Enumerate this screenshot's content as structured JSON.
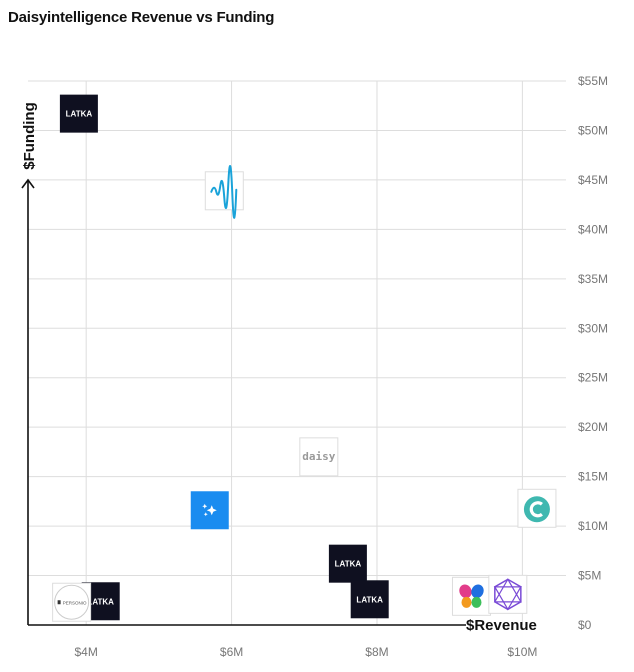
{
  "page": {
    "title": "Daisyintelligence Revenue vs Funding"
  },
  "chart_data": {
    "type": "scatter",
    "title": "Daisyintelligence Revenue vs Funding",
    "xlabel": "$Revenue",
    "ylabel": "$Funding",
    "xlim": [
      3.2,
      10.6
    ],
    "ylim": [
      0,
      55
    ],
    "x_ticks": [
      {
        "value": 4,
        "label": "$4M"
      },
      {
        "value": 6,
        "label": "$6M"
      },
      {
        "value": 8,
        "label": "$8M"
      },
      {
        "value": 10,
        "label": "$10M"
      }
    ],
    "y_ticks": [
      {
        "value": 0,
        "label": "$0"
      },
      {
        "value": 5,
        "label": "$5M"
      },
      {
        "value": 10,
        "label": "$10M"
      },
      {
        "value": 15,
        "label": "$15M"
      },
      {
        "value": 20,
        "label": "$20M"
      },
      {
        "value": 25,
        "label": "$25M"
      },
      {
        "value": 30,
        "label": "$30M"
      },
      {
        "value": 35,
        "label": "$35M"
      },
      {
        "value": 40,
        "label": "$40M"
      },
      {
        "value": 45,
        "label": "$45M"
      },
      {
        "value": 50,
        "label": "$50M"
      },
      {
        "value": 55,
        "label": "$55M"
      }
    ],
    "grid": true,
    "points": [
      {
        "x": 3.9,
        "y": 51.7,
        "logo": "latka-logo",
        "text": "LATKA",
        "bg": "#0f1020",
        "fg": "#ffffff"
      },
      {
        "x": 5.9,
        "y": 43.9,
        "logo": "waveform-logo",
        "bg": "#ffffff",
        "fg": "#1aa3d9"
      },
      {
        "x": 7.2,
        "y": 17.0,
        "logo": "daisy-logo",
        "text": "daisy",
        "bg": "#ffffff",
        "fg": "#9a9a9a"
      },
      {
        "x": 5.7,
        "y": 11.6,
        "logo": "sparkle-logo",
        "bg": "#1a8cf0",
        "fg": "#ffffff"
      },
      {
        "x": 10.2,
        "y": 11.8,
        "logo": "c-circle-logo",
        "bg": "#ffffff",
        "fg": "#3fb8b0"
      },
      {
        "x": 7.6,
        "y": 6.2,
        "logo": "latka-logo",
        "text": "LATKA",
        "bg": "#0f1020",
        "fg": "#ffffff"
      },
      {
        "x": 7.9,
        "y": 2.6,
        "logo": "latka-logo",
        "text": "LATKA",
        "bg": "#0f1020",
        "fg": "#ffffff"
      },
      {
        "x": 4.2,
        "y": 2.4,
        "logo": "latka-logo",
        "text": "LATKA",
        "bg": "#0f1020",
        "fg": "#ffffff"
      },
      {
        "x": 3.8,
        "y": 2.3,
        "logo": "personio-logo",
        "text": "PERSONIO",
        "bg": "#ffffff",
        "fg": "#555555"
      },
      {
        "x": 9.3,
        "y": 2.9,
        "logo": "butterfly-logo",
        "bg": "#ffffff",
        "fg": "#e23c8a"
      },
      {
        "x": 9.8,
        "y": 3.1,
        "logo": "polyhedron-logo",
        "bg": "#ffffff",
        "fg": "#7a4bd6"
      }
    ]
  }
}
